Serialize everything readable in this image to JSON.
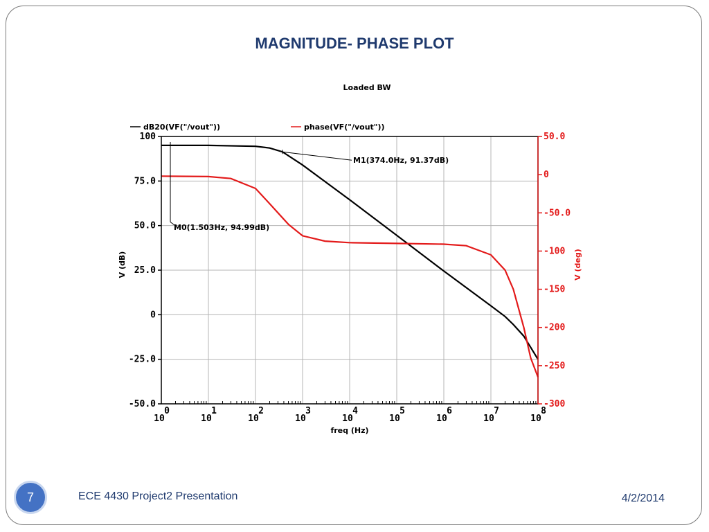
{
  "slide": {
    "title": "MAGNITUDE- PHASE  PLOT",
    "page_number": "7",
    "footer_text": "ECE 4430 Project2 Presentation",
    "footer_date": "4/2/2014"
  },
  "colors": {
    "title": "#1f3a6e",
    "magnitude": "#000000",
    "phase": "#e31a1a",
    "grid": "#b4b4b4",
    "page_number_bg": "#4472c4"
  },
  "chart_data": {
    "type": "line",
    "title": "Loaded BW",
    "xlabel": "freq (Hz)",
    "ylabel_left": "V (dB)",
    "ylabel_right": "V (deg)",
    "x_scale": "log",
    "xlim": [
      1,
      100000000
    ],
    "ylim_left": [
      -50,
      100
    ],
    "ylim_right": [
      -300,
      50
    ],
    "grid": true,
    "legend_position": "top",
    "x_tick_labels": [
      "10",
      "10",
      "10",
      "10",
      "10",
      "10",
      "10",
      "10",
      "10"
    ],
    "x_tick_exponents": [
      "0",
      "1",
      "2",
      "3",
      "4",
      "5",
      "6",
      "7",
      "8"
    ],
    "y_left_tick_labels": [
      "100",
      "75.0",
      "50.0",
      "25.0",
      "0",
      "-25.0",
      "-50.0"
    ],
    "y_right_tick_labels": [
      "50.0",
      "0",
      "-50.0",
      "-100",
      "-150",
      "-200",
      "-250",
      "-300"
    ],
    "series": [
      {
        "name": "dB20(VF(\"/vout\"))",
        "axis": "left",
        "x": [
          1,
          10,
          100,
          200,
          374,
          1000,
          10000,
          100000,
          1000000,
          10000000,
          20000000,
          30000000,
          50000000,
          100000000
        ],
        "y": [
          95.0,
          95.0,
          94.5,
          93.5,
          91.37,
          84.0,
          64.5,
          44.5,
          24.5,
          5.0,
          -1.0,
          -5.5,
          -12.0,
          -25.0
        ]
      },
      {
        "name": "phase(VF(\"/vout\"))",
        "axis": "right",
        "x": [
          1,
          10,
          30,
          100,
          200,
          500,
          1000,
          3000,
          10000,
          100000,
          1000000,
          3000000,
          10000000,
          20000000,
          30000000,
          50000000,
          70000000,
          100000000
        ],
        "y": [
          -2,
          -2.5,
          -5,
          -18,
          -38,
          -65,
          -80,
          -87,
          -89,
          -90,
          -91,
          -93,
          -105,
          -125,
          -150,
          -200,
          -240,
          -265
        ]
      }
    ],
    "markers": [
      {
        "label": "M0(1.503Hz, 94.99dB)",
        "x": 1.503,
        "y": 94.99
      },
      {
        "label": "M1(374.0Hz, 91.37dB)",
        "x": 374.0,
        "y": 91.37
      }
    ]
  }
}
